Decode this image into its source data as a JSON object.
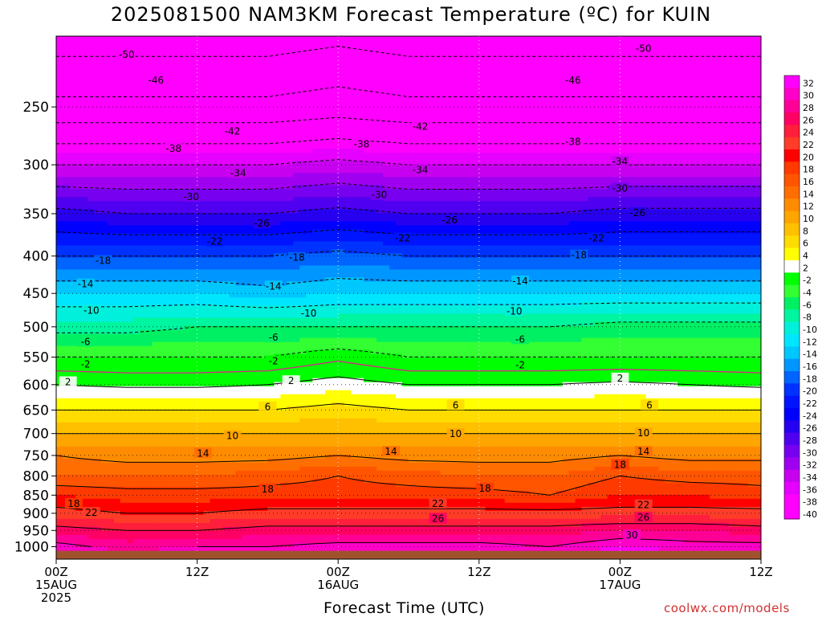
{
  "title": "2025081500 NAM3KM Forecast Temperature (ºC) for KUIN",
  "xlabel": "Forecast Time (UTC)",
  "credit": "coolwx.com/models",
  "chart_data": {
    "type": "heatmap",
    "title": "2025081500 NAM3KM Forecast Temperature (ºC) for KUIN",
    "xlabel": "Forecast Time (UTC)",
    "ylabel": "",
    "y_axis": "pressure (hPa), log scale, inverted (1000 at bottom)",
    "x_range_hours": [
      0,
      60
    ],
    "y_range": [
      1040,
      200
    ],
    "x_ticks": [
      {
        "hour": 0,
        "lines": [
          "00Z",
          "15AUG",
          "2025"
        ]
      },
      {
        "hour": 12,
        "lines": [
          "12Z"
        ]
      },
      {
        "hour": 24,
        "lines": [
          "00Z",
          "16AUG"
        ]
      },
      {
        "hour": 36,
        "lines": [
          "12Z"
        ]
      },
      {
        "hour": 48,
        "lines": [
          "00Z",
          "17AUG"
        ]
      },
      {
        "hour": 60,
        "lines": [
          "12Z"
        ]
      }
    ],
    "y_ticks": [
      250,
      300,
      350,
      400,
      450,
      500,
      550,
      600,
      650,
      700,
      750,
      800,
      850,
      900,
      950,
      1000
    ],
    "hours": [
      0,
      6,
      12,
      18,
      24,
      30,
      36,
      42,
      48,
      54,
      60
    ],
    "levels_hpa": [
      1000,
      950,
      900,
      850,
      800,
      750,
      700,
      650,
      600,
      550,
      500,
      450,
      400,
      350,
      300,
      250,
      200
    ],
    "temperature_c": [
      [
        31,
        29,
        30,
        30,
        31,
        31,
        31,
        30,
        32,
        31,
        31
      ],
      [
        27,
        26,
        26,
        27,
        27,
        27,
        27,
        27,
        28,
        28,
        27
      ],
      [
        23,
        22,
        22,
        23,
        23,
        23,
        23,
        23,
        23,
        23,
        23
      ],
      [
        20,
        19,
        19,
        19,
        19,
        19,
        19,
        18,
        20,
        20,
        19
      ],
      [
        16,
        16,
        16,
        17,
        18,
        17,
        16,
        16,
        18,
        17,
        17
      ],
      [
        14,
        13,
        13,
        13,
        14,
        13,
        13,
        13,
        14,
        13,
        13
      ],
      [
        10,
        10,
        10,
        10,
        10,
        10,
        10,
        10,
        10,
        10,
        10
      ],
      [
        6,
        6,
        6,
        6,
        7,
        6,
        6,
        6,
        6,
        6,
        6
      ],
      [
        2,
        1.5,
        1.5,
        2,
        3,
        2,
        2,
        2,
        2.5,
        2,
        1.5
      ],
      [
        -2,
        -2,
        -2,
        -2,
        -0.5,
        -2,
        -2,
        -2,
        -2,
        -2,
        -2
      ],
      [
        -7,
        -7,
        -6,
        -6,
        -6,
        -6,
        -6,
        -6,
        -5,
        -5,
        -5
      ],
      [
        -12,
        -12,
        -12,
        -13,
        -12,
        -12,
        -12,
        -12,
        -12,
        -12,
        -12
      ],
      [
        -18,
        -18,
        -18,
        -18,
        -17,
        -18,
        -18,
        -18,
        -18,
        -18,
        -18
      ],
      [
        -25,
        -26,
        -26,
        -26,
        -25,
        -26,
        -26,
        -26,
        -25,
        -25,
        -25
      ],
      [
        -34,
        -34,
        -34,
        -34,
        -33,
        -34,
        -34,
        -34,
        -34,
        -34,
        -34
      ],
      [
        -45,
        -45,
        -45,
        -45,
        -44,
        -45,
        -45,
        -45,
        -45,
        -45,
        -45
      ],
      [
        -52,
        -52,
        -52,
        -52,
        -51,
        -52,
        -52,
        -52,
        -52,
        -52,
        -52
      ]
    ],
    "contour_labels": [
      {
        "t": "-50",
        "h": 6,
        "p": 212
      },
      {
        "t": "-50",
        "h": 50,
        "p": 208
      },
      {
        "t": "-46",
        "h": 8.5,
        "p": 230
      },
      {
        "t": "-46",
        "h": 44,
        "p": 230
      },
      {
        "t": "-42",
        "h": 15,
        "p": 270
      },
      {
        "t": "-42",
        "h": 31,
        "p": 266
      },
      {
        "t": "-38",
        "h": 10,
        "p": 285
      },
      {
        "t": "-38",
        "h": 26,
        "p": 281
      },
      {
        "t": "-38",
        "h": 44,
        "p": 279
      },
      {
        "t": "-34",
        "h": 15.5,
        "p": 308
      },
      {
        "t": "-34",
        "h": 31,
        "p": 305
      },
      {
        "t": "-34",
        "h": 48,
        "p": 297
      },
      {
        "t": "-30",
        "h": 11.5,
        "p": 332
      },
      {
        "t": "-30",
        "h": 27.5,
        "p": 330
      },
      {
        "t": "-30",
        "h": 48,
        "p": 323
      },
      {
        "t": "-26",
        "h": 17.5,
        "p": 361
      },
      {
        "t": "-26",
        "h": 33.5,
        "p": 357
      },
      {
        "t": "-26",
        "h": 49.5,
        "p": 349
      },
      {
        "t": "-22",
        "h": 13.5,
        "p": 382
      },
      {
        "t": "-22",
        "h": 29.5,
        "p": 378
      },
      {
        "t": "-22",
        "h": 46,
        "p": 378
      },
      {
        "t": "-18",
        "h": 4,
        "p": 406
      },
      {
        "t": "-18",
        "h": 20.5,
        "p": 402
      },
      {
        "t": "-18",
        "h": 44.5,
        "p": 399
      },
      {
        "t": "-14",
        "h": 2.5,
        "p": 437
      },
      {
        "t": "-14",
        "h": 18.5,
        "p": 440
      },
      {
        "t": "-14",
        "h": 39.5,
        "p": 433
      },
      {
        "t": "-10",
        "h": 3,
        "p": 475
      },
      {
        "t": "-10",
        "h": 21.5,
        "p": 479
      },
      {
        "t": "-10",
        "h": 39,
        "p": 476
      },
      {
        "t": "-6",
        "h": 2.5,
        "p": 524
      },
      {
        "t": "-6",
        "h": 18.5,
        "p": 517
      },
      {
        "t": "-6",
        "h": 39.5,
        "p": 520
      },
      {
        "t": "-2",
        "h": 2.5,
        "p": 563
      },
      {
        "t": "-2",
        "h": 18.5,
        "p": 557
      },
      {
        "t": "-2",
        "h": 39.5,
        "p": 564
      },
      {
        "t": "2",
        "h": 1,
        "p": 595
      },
      {
        "t": "2",
        "h": 20,
        "p": 593
      },
      {
        "t": "2",
        "h": 48,
        "p": 588
      },
      {
        "t": "6",
        "h": 18,
        "p": 644
      },
      {
        "t": "6",
        "h": 34,
        "p": 640
      },
      {
        "t": "6",
        "h": 50.5,
        "p": 640
      },
      {
        "t": "10",
        "h": 15,
        "p": 705
      },
      {
        "t": "10",
        "h": 34,
        "p": 701
      },
      {
        "t": "10",
        "h": 50,
        "p": 699
      },
      {
        "t": "14",
        "h": 12.5,
        "p": 745
      },
      {
        "t": "14",
        "h": 28.5,
        "p": 741
      },
      {
        "t": "14",
        "h": 50,
        "p": 741
      },
      {
        "t": "18",
        "h": 1.5,
        "p": 873
      },
      {
        "t": "18",
        "h": 18,
        "p": 834
      },
      {
        "t": "18",
        "h": 36.5,
        "p": 832
      },
      {
        "t": "18",
        "h": 48,
        "p": 772
      },
      {
        "t": "22",
        "h": 3,
        "p": 898
      },
      {
        "t": "22",
        "h": 32.5,
        "p": 873
      },
      {
        "t": "22",
        "h": 50,
        "p": 877
      },
      {
        "t": "26",
        "h": 32.5,
        "p": 915
      },
      {
        "t": "26",
        "h": 50,
        "p": 912
      },
      {
        "t": "30",
        "h": 49,
        "p": 964
      }
    ],
    "colorbar": {
      "levels": [
        32,
        30,
        28,
        26,
        24,
        22,
        20,
        18,
        16,
        14,
        12,
        10,
        8,
        6,
        4,
        2,
        -2,
        -4,
        -6,
        -8,
        -10,
        -12,
        -14,
        -16,
        -18,
        -20,
        -22,
        -24,
        -26,
        -28,
        -30,
        -32,
        -34,
        -36,
        -38,
        -40
      ],
      "colors": [
        "#ff00ff",
        "#ff00c8",
        "#ff0096",
        "#ff0064",
        "#ff1e3c",
        "#ff3c28",
        "#ff0000",
        "#ff3a00",
        "#ff5500",
        "#ff6e00",
        "#ff8c00",
        "#ffa500",
        "#ffc000",
        "#ffdc00",
        "#ffff00",
        "#ffffff",
        "#00ff00",
        "#33ff33",
        "#00f064",
        "#00f5a0",
        "#00f0dc",
        "#00e6ff",
        "#00c8ff",
        "#0096ff",
        "#0064ff",
        "#0032ff",
        "#0014ff",
        "#0000ff",
        "#2800f0",
        "#5000f0",
        "#7800f0",
        "#a000f0",
        "#c800f0",
        "#e600ff",
        "#ff00ff",
        "#ff00ff"
      ]
    },
    "ground_color": "#a0522d",
    "legend": "colorbar right",
    "grid": "dotted"
  }
}
